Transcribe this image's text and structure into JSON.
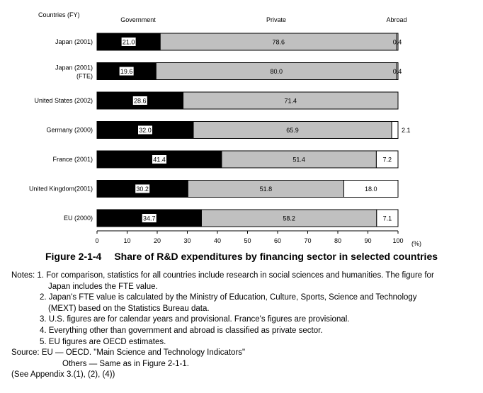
{
  "chart_data": {
    "type": "bar",
    "stacked": true,
    "orientation": "horizontal",
    "header": {
      "category_label": "Countries (FY)",
      "segment_labels": [
        "Government",
        "Private",
        "Abroad"
      ]
    },
    "categories": [
      [
        "Japan (2001)"
      ],
      [
        "Japan (2001)",
        "(FTE)"
      ],
      [
        "United States (2002)"
      ],
      [
        "Germany  (2000)"
      ],
      [
        "France  (2001)"
      ],
      [
        "United Kingdom(2001)"
      ],
      [
        "EU  (2000)"
      ]
    ],
    "series": [
      {
        "name": "Government",
        "color": "#000000",
        "values": [
          21.0,
          19.6,
          28.6,
          32.0,
          41.4,
          30.2,
          34.7
        ],
        "labels": [
          "21.0",
          "19.6",
          "28.6",
          "32.0",
          "41.4",
          "30.2",
          "34.7"
        ]
      },
      {
        "name": "Private",
        "color": "#c0c0c0",
        "values": [
          78.6,
          80.0,
          71.4,
          65.9,
          51.4,
          51.8,
          58.2
        ],
        "labels": [
          "78.6",
          "80.0",
          "71.4",
          "65.9",
          "51.4",
          "51.8",
          "58.2"
        ]
      },
      {
        "name": "Abroad",
        "color": "#ffffff",
        "values": [
          0.4,
          0.4,
          0.0,
          2.1,
          7.2,
          18.0,
          7.1
        ],
        "labels": [
          "0.4",
          "0.4",
          "",
          "2.1",
          "7.2",
          "18.0",
          "7.1"
        ]
      }
    ],
    "xlim": [
      0,
      100
    ],
    "xticks": [
      "0",
      "10",
      "20",
      "30",
      "40",
      "50",
      "60",
      "70",
      "80",
      "90",
      "100"
    ],
    "xunit": "(%)",
    "grid": false
  },
  "caption": {
    "number": "Figure 2-1-4",
    "title": "Share of R&D expenditures by financing sector in selected countries"
  },
  "notes": [
    "Notes: 1. For comparison, statistics for all countries include research in social sciences and humanities. The figure for",
    "Japan includes the FTE value.",
    "2. Japan's FTE value is calculated by the Ministry of Education, Culture, Sports, Science and Technology",
    "(MEXT) based on the Statistics Bureau data.",
    "3. U.S. figures are for calendar years and provisional. France's figures are provisional.",
    "4. Everything other than government and abroad is classified as private sector.",
    "5. EU figures are OECD estimates.",
    "Source: EU — OECD. \"Main Science and Technology Indicators\"",
    "Others — Same as in Figure 2-1-1.",
    "(See Appendix 3.(1), (2), (4))"
  ]
}
